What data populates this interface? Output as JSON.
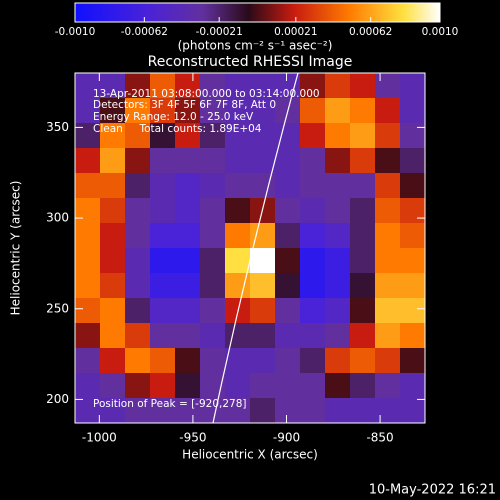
{
  "chart_data": {
    "type": "heatmap",
    "title": "Reconstructed RHESSI Image",
    "x_label": "Heliocentric X (arcsec)",
    "y_label": "Heliocentric Y (arcsec)",
    "colorbar_label": "(photons cm⁻² s⁻¹ asec⁻²)",
    "annotations": [
      "13-Apr-2011 03:08:00.000 to 03:14:00.000",
      "Detectors: 3F 4F 5F 6F 7F 8F, Att 0",
      "Energy Range: 12.0 - 25.0 keV",
      "Clean     Total counts: 1.89E+04",
      "Position of Peak = [-920,278]"
    ],
    "timestamp": "10-May-2022 16:21",
    "xlim": [
      -1013,
      -826
    ],
    "ylim": [
      187,
      380
    ],
    "xticks": [
      -1000,
      -950,
      -900,
      -850
    ],
    "yticks": [
      200,
      250,
      300,
      350
    ],
    "clim": [
      -0.001,
      0.001
    ],
    "cticks": [
      {
        "value": -0.001,
        "label": "-0.0010"
      },
      -0.00062,
      -0.00021,
      0.00021,
      0.00062,
      {
        "value": 0.001,
        "label": "0.0010"
      }
    ],
    "colorscale": [
      [
        -0.001,
        "#1010ff"
      ],
      [
        -0.0006,
        "#4a22d8"
      ],
      [
        -0.0003,
        "#62309e"
      ],
      [
        -5e-05,
        "#2a0a18"
      ],
      [
        0.0002,
        "#c81c10"
      ],
      [
        0.0005,
        "#ff7a00"
      ],
      [
        0.0008,
        "#ffe040"
      ],
      [
        0.001,
        "#ffffff"
      ]
    ],
    "z": [
      [
        -0.0004,
        -0.0004,
        0.0001,
        0.0004,
        0.0002,
        -0.0003,
        -0.0004,
        -0.0004,
        -0.0004,
        0.0001,
        0.0003,
        0.0002,
        -0.0003,
        -0.0004
      ],
      [
        -0.0004,
        0,
        0.0005,
        0.0003,
        0.0001,
        -0.0003,
        -0.0004,
        -0.0004,
        -0.0003,
        0.0004,
        0.0006,
        0.0005,
        0.0002,
        -0.0004
      ],
      [
        -0.0002,
        0.0005,
        0.0004,
        -0.0001,
        0.0002,
        -0.0002,
        -0.0004,
        -0.0004,
        -0.0004,
        0.0002,
        0.0005,
        0.0006,
        0.0003,
        -0.0003
      ],
      [
        0.0002,
        0.0006,
        0.0001,
        -0.0003,
        -0.0003,
        -0.0003,
        -0.0004,
        -0.0004,
        -0.0004,
        -0.0003,
        0.0001,
        0.0003,
        0,
        -0.0002
      ],
      [
        0.0004,
        0.0004,
        -0.0002,
        -0.0004,
        -0.0005,
        -0.0004,
        -0.0003,
        -0.0003,
        -0.0004,
        -0.0003,
        -0.0003,
        -0.0003,
        0.0003,
        0
      ],
      [
        0.0005,
        0.0003,
        -0.0003,
        -0.0004,
        -0.0005,
        -0.0003,
        0,
        0.0001,
        -0.0003,
        -0.0004,
        -0.0003,
        -0.0002,
        0.0004,
        0.0003
      ],
      [
        0.0005,
        0.0002,
        -0.0003,
        -0.0006,
        -0.0006,
        -0.0003,
        0.0005,
        0.0006,
        -0.0002,
        -0.0006,
        -0.0005,
        -0.0002,
        0.0005,
        0.0004
      ],
      [
        0.0005,
        0.0002,
        -0.0004,
        -0.0008,
        -0.0008,
        -0.0002,
        0.0008,
        0.001,
        0,
        -0.0008,
        -0.0007,
        -0.0002,
        0.0005,
        0.0005
      ],
      [
        0.0005,
        0.0003,
        -0.0004,
        -0.0007,
        -0.0007,
        -0.0002,
        0.0006,
        0.0007,
        -0.0001,
        -0.0008,
        -0.0007,
        -0.0001,
        0.0006,
        0.0006
      ],
      [
        0.0004,
        0.0005,
        -0.0002,
        -0.0005,
        -0.0005,
        -0.0003,
        0.0002,
        0.0003,
        -0.0003,
        -0.0006,
        -0.0005,
        0,
        0.0007,
        0.0007
      ],
      [
        0.0001,
        0.0005,
        0.0003,
        -0.0003,
        -0.0003,
        -0.0004,
        -0.0002,
        -0.0002,
        -0.0004,
        -0.0004,
        -0.0003,
        0.0002,
        0.0006,
        0.0005
      ],
      [
        -0.0003,
        0.0002,
        0.0005,
        0.0004,
        0,
        -0.0003,
        -0.0004,
        -0.0004,
        -0.0003,
        -0.0002,
        0.0003,
        0.0004,
        0.0003,
        0
      ],
      [
        -0.0004,
        -0.0003,
        0.0001,
        0.0002,
        -0.0001,
        -0.0003,
        -0.0004,
        -0.0003,
        -0.0003,
        -0.0003,
        0,
        -0.0002,
        -0.0003,
        -0.0004
      ],
      [
        -0.0004,
        -0.0004,
        -0.0003,
        -0.0003,
        -0.0003,
        -0.0003,
        -0.0003,
        -0.0002,
        -0.0003,
        -0.0003,
        -0.0004,
        -0.0004,
        -0.0004,
        -0.0004
      ]
    ]
  }
}
